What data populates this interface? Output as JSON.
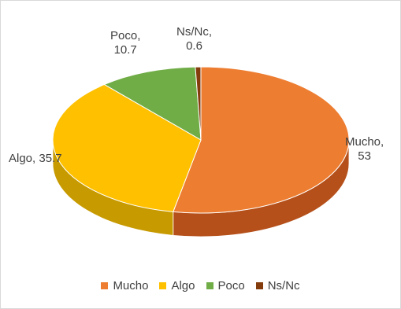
{
  "chart_data": {
    "type": "pie",
    "categories": [
      "Mucho",
      "Algo",
      "Poco",
      "Ns/Nc"
    ],
    "values": [
      53,
      35.7,
      10.7,
      0.6
    ],
    "colors": [
      "#ED7D31",
      "#FFC000",
      "#70AD47",
      "#843C0C"
    ],
    "side_colors": [
      "#B5501A",
      "#C79A00",
      "#4E8030",
      "#5E2A08"
    ],
    "data_labels": [
      {
        "line1": "Mucho,",
        "line2": "53"
      },
      {
        "line1": "Algo, 35.7",
        "line2": ""
      },
      {
        "line1": "Poco,",
        "line2": "10.7"
      },
      {
        "line1": "Ns/Nc,",
        "line2": "0.6"
      }
    ],
    "legend_position": "bottom",
    "style": "3d-pie"
  }
}
